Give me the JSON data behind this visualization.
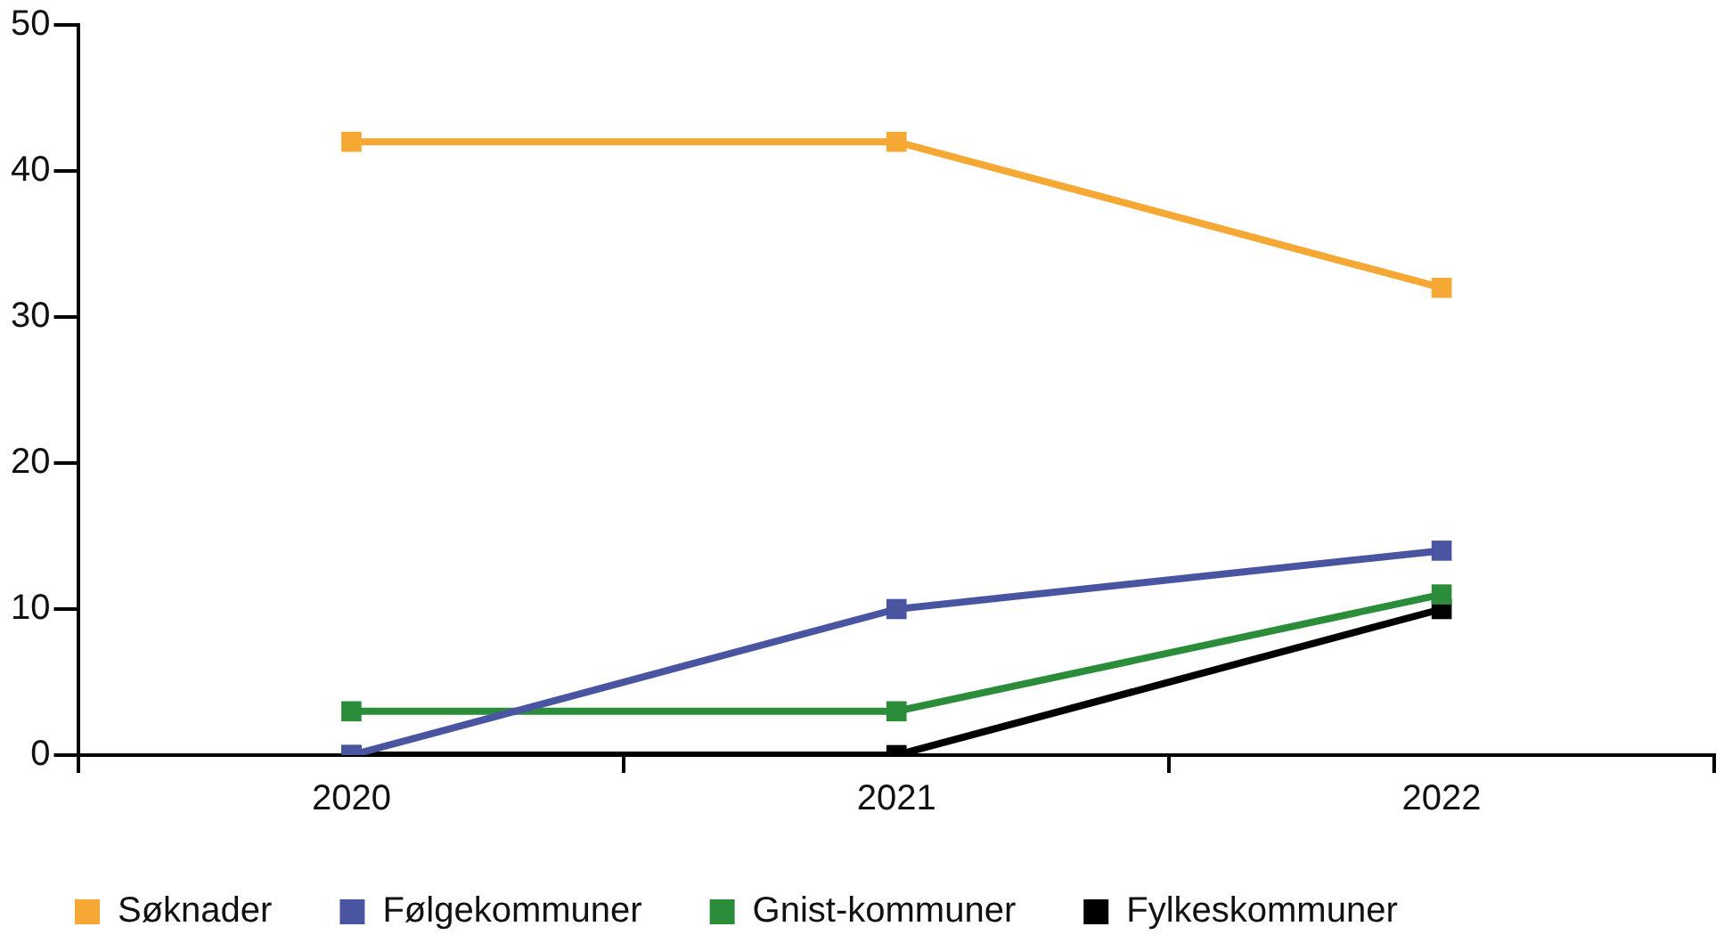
{
  "chart_data": {
    "type": "line",
    "categories": [
      "2020",
      "2021",
      "2022"
    ],
    "series": [
      {
        "name": "Søknader",
        "color": "#f5a833",
        "values": [
          42,
          42,
          32
        ]
      },
      {
        "name": "Følgekommuner",
        "color": "#4a55a2",
        "values": [
          0,
          10,
          14
        ]
      },
      {
        "name": "Gnist-kommuner",
        "color": "#2b8c3a",
        "values": [
          3,
          3,
          11
        ]
      },
      {
        "name": "Fylkeskommuner",
        "color": "#000000",
        "values": [
          0,
          0,
          10
        ]
      }
    ],
    "ylim": [
      0,
      50
    ],
    "yticks": [
      0,
      10,
      20,
      30,
      40,
      50
    ],
    "grid": false,
    "legend": "bottom",
    "marker": "square",
    "line_style": "solid"
  }
}
